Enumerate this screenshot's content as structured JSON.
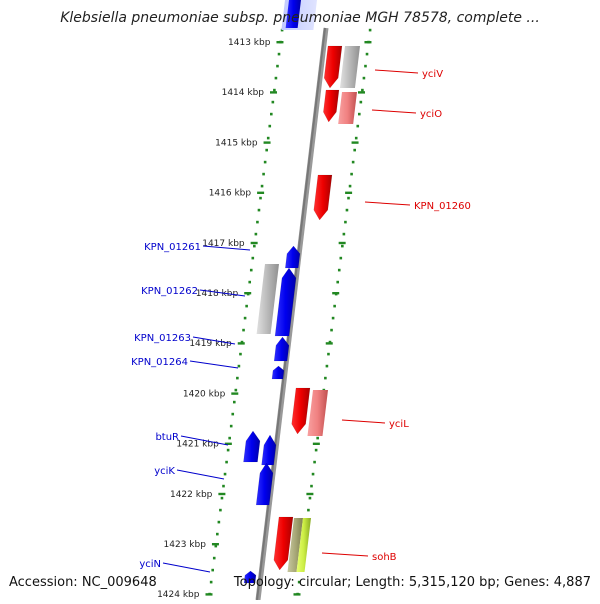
{
  "title": "Klebsiella pneumoniae subsp. pneumoniae MGH 78578, complete ...",
  "footer": {
    "accession": "Accession: NC_009648",
    "summary": "Topology: circular; Length: 5,315,120 bp; Genes: 4,887"
  },
  "colors": {
    "forward_gene": "#ee0000",
    "reverse_gene": "#0000ee",
    "pseudo_gray": "#b8b8b8",
    "light_red": "#f08080",
    "yellow_green": "#ccee44",
    "axis": "#888888",
    "ruler": "#228822"
  },
  "ruler": {
    "unit": "kbp",
    "ticks": [
      "1413 kbp",
      "1414 kbp",
      "1415 kbp",
      "1416 kbp",
      "1417 kbp",
      "1418 kbp",
      "1419 kbp",
      "1420 kbp",
      "1421 kbp",
      "1422 kbp",
      "1423 kbp",
      "1424 kbp"
    ]
  },
  "genes": {
    "forward": [
      {
        "label": "yciV"
      },
      {
        "label": "yciO"
      },
      {
        "label": "KPN_01260"
      },
      {
        "label": "yciL"
      },
      {
        "label": "sohB"
      }
    ],
    "reverse": [
      {
        "label": "KPN_01261"
      },
      {
        "label": "KPN_01262"
      },
      {
        "label": "KPN_01263"
      },
      {
        "label": "KPN_01264"
      },
      {
        "label": "btuR"
      },
      {
        "label": "yciK"
      },
      {
        "label": "yciN"
      }
    ]
  }
}
